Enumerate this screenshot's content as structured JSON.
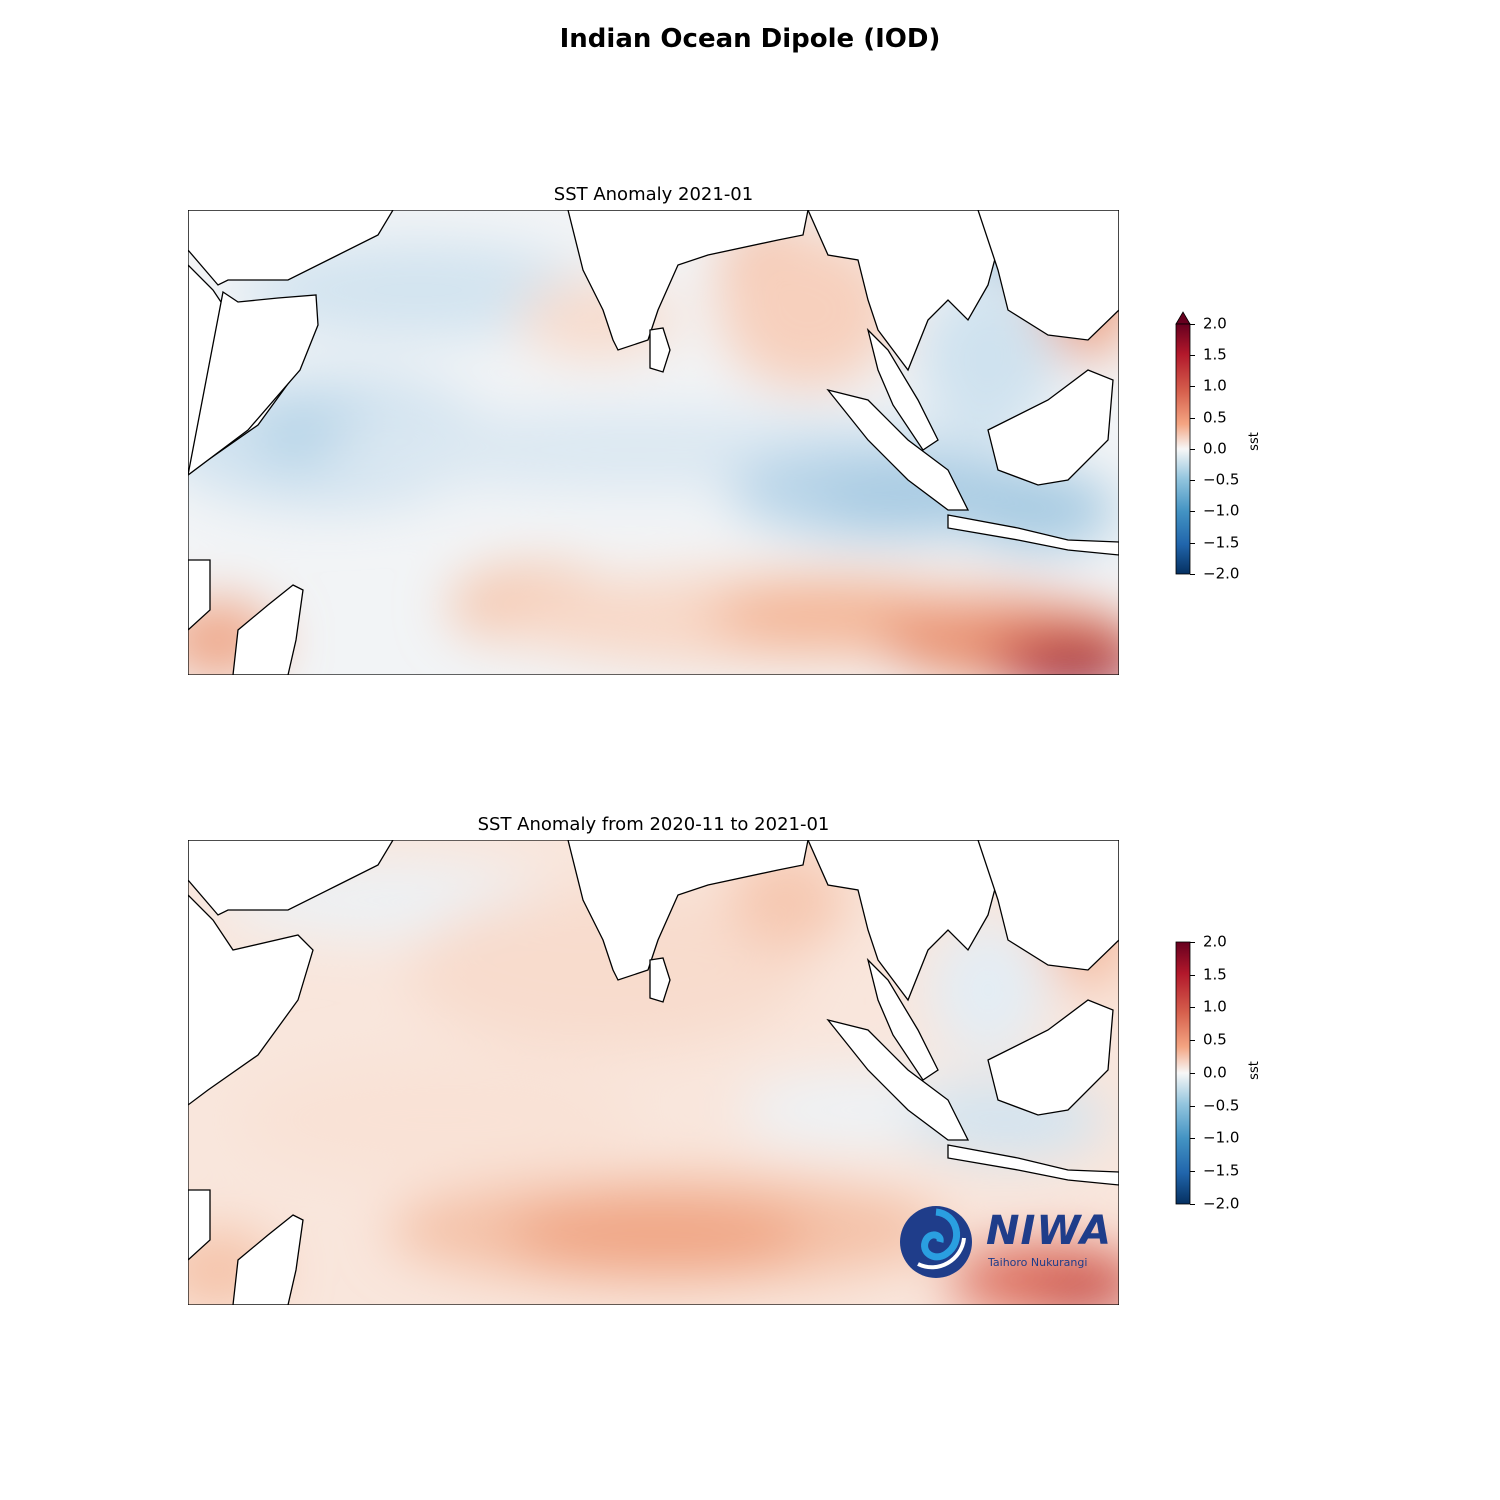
{
  "figure": {
    "title": "Indian Ocean Dipole (IOD)"
  },
  "panels": [
    {
      "title": "SST Anomaly 2021-01",
      "colorbar": {
        "label": "sst",
        "ticks": [
          "2.0",
          "1.5",
          "1.0",
          "0.5",
          "0.0",
          "−0.5",
          "−1.0",
          "−1.5",
          "−2.0"
        ],
        "range": [
          -2.0,
          2.0
        ],
        "extend": "max",
        "colormap": "RdBu_r"
      }
    },
    {
      "title": "SST Anomaly from 2020-11 to 2021-01",
      "colorbar": {
        "label": "sst",
        "ticks": [
          "2.0",
          "1.5",
          "1.0",
          "0.5",
          "0.0",
          "−0.5",
          "−1.0",
          "−1.5",
          "−2.0"
        ],
        "range": [
          -2.0,
          2.0
        ],
        "extend": "neither",
        "colormap": "RdBu_r"
      }
    }
  ],
  "logo": {
    "name": "NIWA",
    "tagline": "Taihoro Nukurangi",
    "color": "#1f3d8a"
  },
  "colors": {
    "warm_strong": "#67001f",
    "warm_mid": "#e8896b",
    "warm_light": "#f9dccd",
    "neutral": "#f5f5f5",
    "cool_light": "#d6e6f1",
    "cool_mid": "#9cc4de",
    "land": "#ffffff",
    "coast": "#000000"
  }
}
